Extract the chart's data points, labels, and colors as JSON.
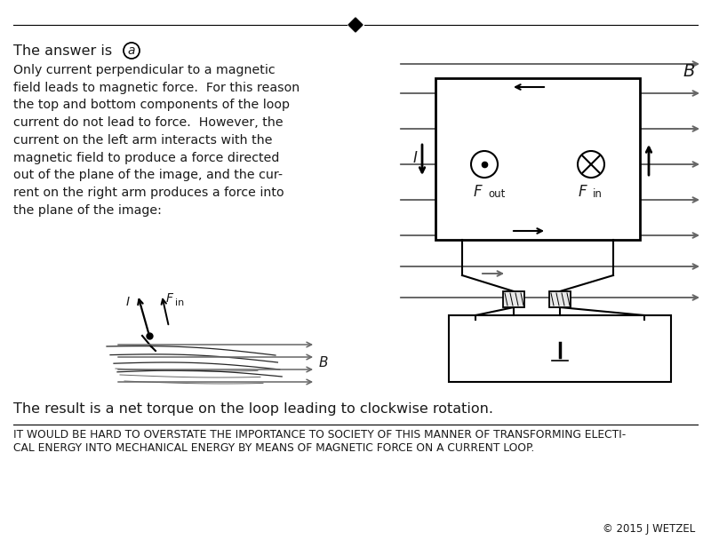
{
  "title_line": "The answer is ",
  "answer_letter": "a",
  "body_text": "Only current perpendicular to a magnetic\nfield leads to magnetic force.  For this reason\nthe top and bottom components of the loop\ncurrent do not lead to force.  However, the\ncurrent on the left arm interacts with the\nmagnetic field to produce a force directed\nout of the plane of the image, and the cur-\nrent on the right arm produces a force into\nthe plane of the image:",
  "result_text": "The result is a net torque on the loop leading to clockwise rotation.",
  "footer_line1": "IT WOULD BE HARD TO OVERSTATE THE IMPORTANCE TO SOCIETY OF THIS MANNER OF TRANSFORMING ELECTI-",
  "footer_line2": "CAL ENERGY INTO MECHANICAL ENERGY BY MEANS OF MAGNETIC FORCE ON A CURRENT LOOP.",
  "copyright_text": "© 2015 J WETZEL",
  "bg_color": "#ffffff",
  "text_color": "#1a1a1a",
  "diagram_color": "#666666"
}
